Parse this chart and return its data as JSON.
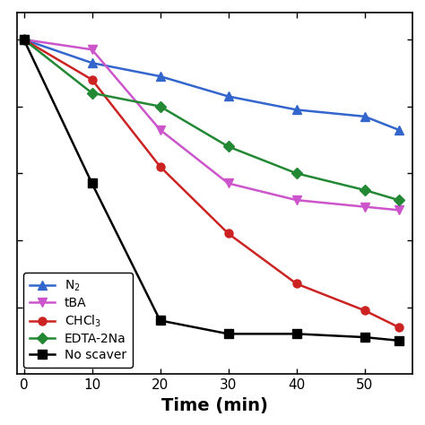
{
  "series": [
    {
      "label": "N$_2$",
      "color": "#3366cc",
      "marker": "^",
      "x": [
        0,
        10,
        20,
        30,
        40,
        50,
        55
      ],
      "y": [
        1.0,
        0.93,
        0.89,
        0.83,
        0.79,
        0.77,
        0.73
      ]
    },
    {
      "label": "tBA",
      "color": "#cc55cc",
      "marker": "v",
      "x": [
        0,
        10,
        20,
        30,
        40,
        50,
        55
      ],
      "y": [
        1.0,
        0.97,
        0.73,
        0.57,
        0.52,
        0.5,
        0.49
      ]
    },
    {
      "label": "CHCl$_3$",
      "color": "#cc2222",
      "marker": "o",
      "x": [
        0,
        10,
        20,
        30,
        40,
        50,
        55
      ],
      "y": [
        1.0,
        0.88,
        0.62,
        0.42,
        0.27,
        0.19,
        0.14
      ]
    },
    {
      "label": "EDTA-2Na",
      "color": "#228833",
      "marker": "D",
      "x": [
        0,
        10,
        20,
        30,
        40,
        50,
        55
      ],
      "y": [
        1.0,
        0.84,
        0.8,
        0.68,
        0.6,
        0.55,
        0.52
      ]
    },
    {
      "label": "No scaver",
      "color": "#000000",
      "marker": "s",
      "x": [
        0,
        10,
        20,
        30,
        40,
        50,
        55
      ],
      "y": [
        1.0,
        0.57,
        0.16,
        0.12,
        0.12,
        0.11,
        0.1
      ]
    }
  ],
  "xlabel": "Time (min)",
  "xlim": [
    -1,
    57
  ],
  "ylim": [
    0,
    1.08
  ],
  "xticks": [
    0,
    10,
    20,
    30,
    40,
    50
  ],
  "yticks": [
    0.2,
    0.4,
    0.6,
    0.8,
    1.0
  ],
  "legend_loc": "lower left",
  "figsize": [
    4.74,
    4.74
  ],
  "dpi": 100,
  "linewidth": 1.8,
  "markersize": 6.5,
  "background_color": "#ffffff"
}
